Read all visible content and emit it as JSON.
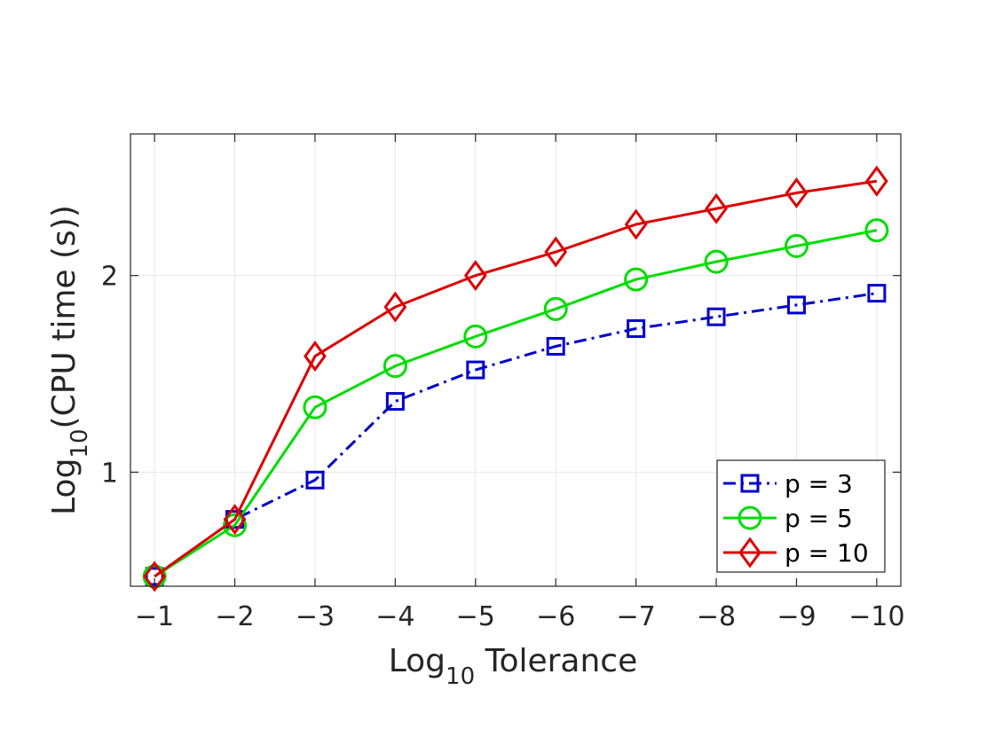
{
  "chart_data": {
    "type": "line",
    "xlabel": "Log",
    "xlabel_sub": "10",
    "xlabel_rest": " Tolerance",
    "ylabel": "Log",
    "ylabel_sub": "10",
    "ylabel_rest": "(CPU time (s))",
    "x": [
      -1,
      -2,
      -3,
      -4,
      -5,
      -6,
      -7,
      -8,
      -9,
      -10
    ],
    "x_tick_labels": [
      "−1",
      "−2",
      "−3",
      "−4",
      "−5",
      "−6",
      "−7",
      "−8",
      "−9",
      "−10"
    ],
    "y_ticks": [
      1,
      2
    ],
    "y_tick_labels": [
      "1",
      "2"
    ],
    "xlim": [
      -0.7,
      -10.3
    ],
    "ylim": [
      0.42,
      2.72
    ],
    "grid": true,
    "legend_position": "bottom-right",
    "series": [
      {
        "name": "p = 3",
        "color": "#0000cc",
        "line_style": "dash-dot",
        "marker": "square",
        "values": [
          0.47,
          0.76,
          0.96,
          1.36,
          1.52,
          1.64,
          1.73,
          1.79,
          1.85,
          1.91
        ]
      },
      {
        "name": "p = 5",
        "color": "#00dd00",
        "line_style": "solid",
        "marker": "circle",
        "values": [
          0.47,
          0.73,
          1.33,
          1.54,
          1.69,
          1.83,
          1.98,
          2.07,
          2.15,
          2.23
        ]
      },
      {
        "name": "p = 10",
        "color": "#dd0000",
        "line_style": "solid",
        "marker": "diamond",
        "values": [
          0.47,
          0.76,
          1.59,
          1.84,
          2.0,
          2.12,
          2.26,
          2.34,
          2.42,
          2.48
        ]
      }
    ]
  }
}
